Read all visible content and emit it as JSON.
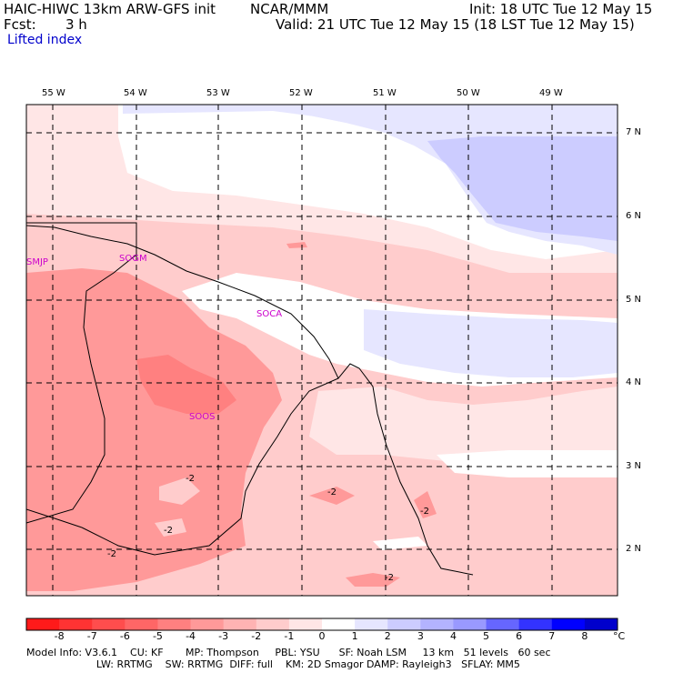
{
  "header": {
    "title": "HAIC-HIWC 13km ARW-GFS init",
    "org": "NCAR/MMM",
    "init": "Init: 18 UTC Tue 12 May 15",
    "fcst_label": "Fcst:",
    "fcst_value": "3 h",
    "valid": "Valid: 21 UTC Tue 12 May 15 (18 LST Tue 12 May 15)",
    "field": "Lifted index"
  },
  "map": {
    "lon_labels": [
      "55 W",
      "54 W",
      "53 W",
      "52 W",
      "51 W",
      "50 W",
      "49 W"
    ],
    "lat_labels": [
      "7 N",
      "6 N",
      "5 N",
      "4 N",
      "3 N",
      "2 N"
    ],
    "stations": [
      "SMJP",
      "SOGM",
      "SOCA",
      "SOOS"
    ],
    "contour_labels": [
      "-2",
      "-2",
      "-2",
      "-2",
      "-2",
      "-2"
    ],
    "station_color": "#cc00cc"
  },
  "colorbar": {
    "labels": [
      "-8",
      "-7",
      "-6",
      "-5",
      "-4",
      "-3",
      "-2",
      "-1",
      "0",
      "1",
      "2",
      "3",
      "4",
      "5",
      "6",
      "7",
      "8"
    ],
    "unit": "°C",
    "colors": [
      "#ff1a1a",
      "#ff3333",
      "#ff4d4d",
      "#ff6666",
      "#ff8080",
      "#ff9999",
      "#ffb3b3",
      "#ffcccc",
      "#ffe6e6",
      "#ffffff",
      "#e6e6ff",
      "#ccccff",
      "#b3b3ff",
      "#9999ff",
      "#6666ff",
      "#3333ff",
      "#0000ff",
      "#0000cc"
    ]
  },
  "model_info": {
    "line1": "Model Info: V3.6.1    CU: KF       MP: Thompson     PBL: YSU      SF: Noah LSM     13 km   51 levels   60 sec",
    "line2": "                      LW: RRTMG    SW: RRTMG  DIFF: full    KM: 2D Smagor DAMP: Rayleigh3   SFLAY: MM5"
  }
}
